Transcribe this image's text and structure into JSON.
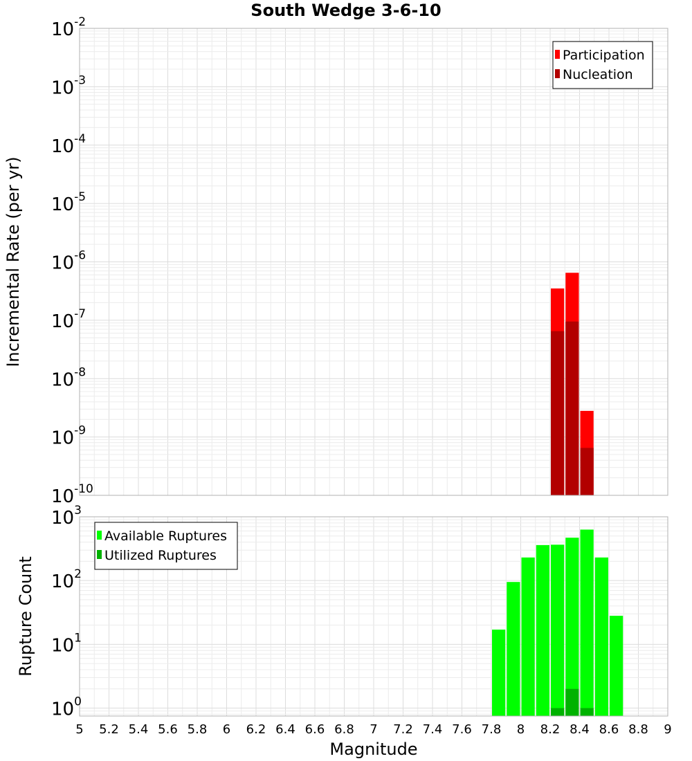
{
  "chart_data": [
    {
      "type": "bar",
      "title": "South Wedge 3-6-10",
      "xlabel": "Magnitude",
      "ylabel": "Incremental Rate (per yr)",
      "y_scale": "log",
      "xlim": [
        5,
        9
      ],
      "ylim": [
        1e-10,
        0.01
      ],
      "y_decades": [
        {
          "base": "10",
          "exp": "-10"
        },
        {
          "base": "10",
          "exp": "-9"
        },
        {
          "base": "10",
          "exp": "-8"
        },
        {
          "base": "10",
          "exp": "-7"
        },
        {
          "base": "10",
          "exp": "-6"
        },
        {
          "base": "10",
          "exp": "-5"
        },
        {
          "base": "10",
          "exp": "-4"
        },
        {
          "base": "10",
          "exp": "-3"
        },
        {
          "base": "10",
          "exp": "-2"
        }
      ],
      "bar_width": 0.1,
      "legend": {
        "position": "top-right",
        "entries": [
          "Participation",
          "Nucleation"
        ]
      },
      "series": [
        {
          "name": "Participation",
          "color": "#ff0000",
          "x": [
            8.25,
            8.35,
            8.45
          ],
          "values": [
            3.5e-07,
            6.5e-07,
            2.8e-09
          ]
        },
        {
          "name": "Nucleation",
          "color": "#b20000",
          "x": [
            8.25,
            8.35,
            8.45
          ],
          "values": [
            6.5e-08,
            9.5e-08,
            6.5e-10
          ]
        }
      ]
    },
    {
      "type": "bar",
      "title": "",
      "xlabel": "Magnitude",
      "ylabel": "Rupture Count",
      "y_scale": "log",
      "xlim": [
        5,
        9
      ],
      "ylim": [
        0.75,
        1000
      ],
      "y_decades": [
        {
          "base": "10",
          "exp": "0"
        },
        {
          "base": "10",
          "exp": "1"
        },
        {
          "base": "10",
          "exp": "2"
        },
        {
          "base": "10",
          "exp": "3"
        }
      ],
      "bar_width": 0.1,
      "x_ticks": [
        "5",
        "5.2",
        "5.4",
        "5.6",
        "5.8",
        "6",
        "6.2",
        "6.4",
        "6.6",
        "6.8",
        "7",
        "7.2",
        "7.4",
        "7.6",
        "7.8",
        "8",
        "8.2",
        "8.4",
        "8.6",
        "8.8",
        "9"
      ],
      "legend": {
        "position": "top-left",
        "entries": [
          "Available Ruptures",
          "Utilized Ruptures"
        ]
      },
      "series": [
        {
          "name": "Available Ruptures",
          "color": "#00ff00",
          "x": [
            7.85,
            7.95,
            8.05,
            8.15,
            8.25,
            8.35,
            8.45,
            8.55,
            8.65
          ],
          "values": [
            17,
            95,
            230,
            360,
            365,
            470,
            630,
            230,
            28
          ]
        },
        {
          "name": "Utilized Ruptures",
          "color": "#00b200",
          "x": [
            8.25,
            8.35,
            8.45
          ],
          "values": [
            1,
            2,
            1
          ]
        }
      ]
    }
  ]
}
